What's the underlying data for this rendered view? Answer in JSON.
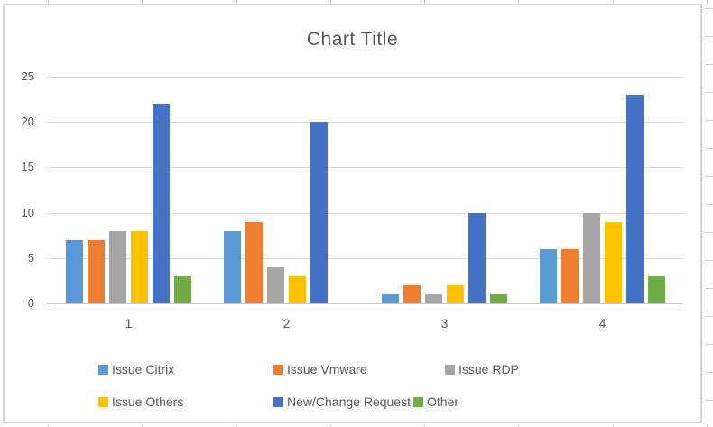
{
  "chart_data": {
    "type": "bar",
    "title": "Chart Title",
    "categories": [
      "1",
      "2",
      "3",
      "4"
    ],
    "series": [
      {
        "name": "Issue Citrix",
        "color": "#5B9BD5",
        "values": [
          7,
          8,
          1,
          6
        ]
      },
      {
        "name": "Issue Vmware",
        "color": "#ED7D31",
        "values": [
          7,
          9,
          2,
          6
        ]
      },
      {
        "name": "Issue RDP",
        "color": "#A5A5A5",
        "values": [
          8,
          4,
          1,
          10
        ]
      },
      {
        "name": "Issue Others",
        "color": "#FFC000",
        "values": [
          8,
          3,
          2,
          9
        ]
      },
      {
        "name": "New/Change Request",
        "color": "#4472C4",
        "values": [
          22,
          20,
          10,
          23
        ]
      },
      {
        "name": "Other",
        "color": "#70AD47",
        "values": [
          3,
          0,
          1,
          3
        ]
      }
    ],
    "xlabel": "",
    "ylabel": "",
    "ylim": [
      0,
      25
    ],
    "yticks": [
      0,
      5,
      10,
      15,
      20,
      25
    ],
    "grid": true,
    "legend_position": "bottom",
    "legend_rows": [
      [
        "Issue Citrix",
        "Issue Vmware",
        "Issue RDP"
      ],
      [
        "Issue Others",
        "New/Change Request",
        "Other"
      ]
    ],
    "colors": {
      "text": "#595959",
      "gridline": "#D9D9D9",
      "axisline": "#C6C6C6",
      "chart_border": "#D6D6D6",
      "sheet_cell_border": "#D0D0D0"
    }
  }
}
